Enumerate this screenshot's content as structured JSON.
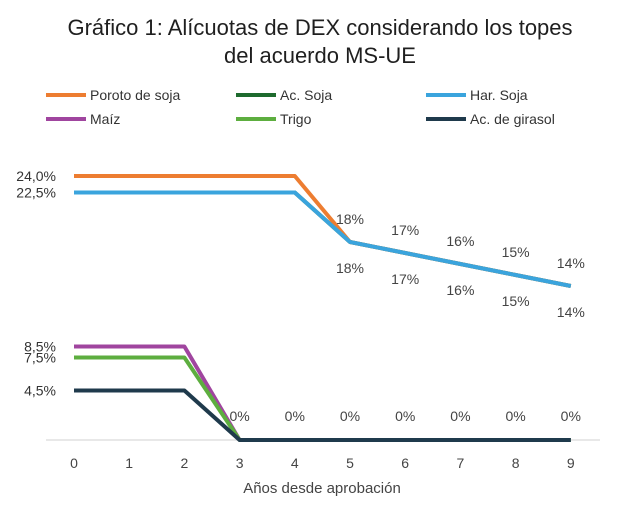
{
  "chart_data": {
    "type": "line",
    "title_lines": [
      "Gráfico 1: Alícuotas de DEX considerando los topes",
      "del acuerdo MS-UE"
    ],
    "xlabel": "Años desde aprobación",
    "ylabel": "",
    "x": [
      0,
      1,
      2,
      3,
      4,
      5,
      6,
      7,
      8,
      9
    ],
    "x_tick_labels": [
      "0",
      "1",
      "2",
      "3",
      "4",
      "5",
      "6",
      "7",
      "8",
      "9"
    ],
    "ylim": [
      0,
      26
    ],
    "y_tick_values": [
      24.0,
      22.5,
      8.5,
      7.5,
      4.5
    ],
    "y_tick_labels": [
      "24,0%",
      "22,5%",
      "8,5%",
      "7,5%",
      "4,5%"
    ],
    "series": [
      {
        "name": "Poroto de soja",
        "color": "#ED7D31",
        "values": [
          24.0,
          24.0,
          24.0,
          24.0,
          24.0,
          18,
          17,
          16,
          15,
          14
        ]
      },
      {
        "name": "Ac. Soja",
        "color": "#1E6B2E",
        "values": [
          22.5,
          22.5,
          22.5,
          22.5,
          22.5,
          18,
          17,
          16,
          15,
          14
        ]
      },
      {
        "name": "Har. Soja",
        "color": "#3AA4DD",
        "values": [
          22.5,
          22.5,
          22.5,
          22.5,
          22.5,
          18,
          17,
          16,
          15,
          14
        ]
      },
      {
        "name": "Maíz",
        "color": "#A0459F",
        "values": [
          8.5,
          8.5,
          8.5,
          0,
          0,
          0,
          0,
          0,
          0,
          0
        ]
      },
      {
        "name": "Trigo",
        "color": "#5DAE3F",
        "values": [
          7.5,
          7.5,
          7.5,
          0,
          0,
          0,
          0,
          0,
          0,
          0
        ]
      },
      {
        "name": "Ac. de girasol",
        "color": "#1F3A4C",
        "values": [
          4.5,
          4.5,
          4.5,
          0,
          0,
          0,
          0,
          0,
          0,
          0
        ]
      }
    ],
    "legend_order": [
      "Poroto de soja",
      "Ac. Soja",
      "Har. Soja",
      "Maíz",
      "Trigo",
      "Ac. de girasol"
    ],
    "legend_position": "top",
    "annotations": {
      "upper_above": [
        {
          "x": 5,
          "label": "18%"
        },
        {
          "x": 6,
          "label": "17%"
        },
        {
          "x": 7,
          "label": "16%"
        },
        {
          "x": 8,
          "label": "15%"
        },
        {
          "x": 9,
          "label": "14%"
        }
      ],
      "upper_below": [
        {
          "x": 5,
          "label": "18%"
        },
        {
          "x": 6,
          "label": "17%"
        },
        {
          "x": 7,
          "label": "16%"
        },
        {
          "x": 8,
          "label": "15%"
        },
        {
          "x": 9,
          "label": "14%"
        }
      ],
      "zero_above": [
        {
          "x": 3,
          "label": "0%"
        },
        {
          "x": 4,
          "label": "0%"
        },
        {
          "x": 5,
          "label": "0%"
        },
        {
          "x": 6,
          "label": "0%"
        },
        {
          "x": 7,
          "label": "0%"
        },
        {
          "x": 8,
          "label": "0%"
        },
        {
          "x": 9,
          "label": "0%"
        }
      ]
    }
  }
}
